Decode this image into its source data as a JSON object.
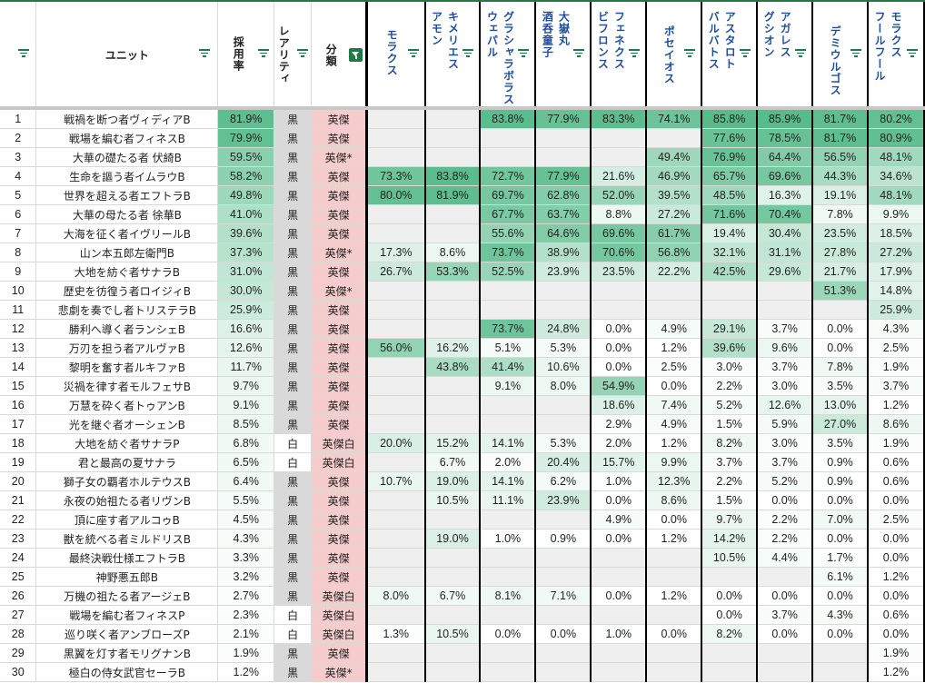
{
  "header": {
    "unit_label": "ユニット",
    "rate_label": "採用率",
    "rarity_label": "レアリティ",
    "class_label": "分類",
    "columns": [
      {
        "line1": "モラクス",
        "line2": ""
      },
      {
        "line1": "キメリエス",
        "line2": "アモン"
      },
      {
        "line1": "グラシャラボラス",
        "line2": "ウェパル"
      },
      {
        "line1": "大嶽丸",
        "line2": "酒呑童子"
      },
      {
        "line1": "フェネクス",
        "line2": "ビフロンス"
      },
      {
        "line1": "ポセイオス",
        "line2": ""
      },
      {
        "line1": "アスタロト",
        "line2": "バルバトス"
      },
      {
        "line1": "アガレス",
        "line2": "グシオン"
      },
      {
        "line1": "デミウルゴス",
        "line2": ""
      },
      {
        "line1": "モラクス",
        "line2": "フールフール"
      }
    ]
  },
  "colors": {
    "accent_green": "#1e7a46",
    "header_blue": "#1f4e9c",
    "rarity_black_bg": "#d9d9d9",
    "class_bg": "#f4cccc",
    "empty_bg": "#efefef",
    "heat_max": "#57bb8a",
    "heat_min": "#ffffff"
  },
  "rows": [
    {
      "n": "1",
      "unit": "戦禍を断つ者ヴィディアB",
      "rate": "81.9%",
      "rarity": "黒",
      "cls": "英傑",
      "v": [
        "",
        "",
        "83.8%",
        "77.9%",
        "83.3%",
        "74.1%",
        "85.8%",
        "85.9%",
        "81.7%",
        "80.2%"
      ]
    },
    {
      "n": "2",
      "unit": "戦場を編む者フィネスB",
      "rate": "79.9%",
      "rarity": "黒",
      "cls": "英傑",
      "v": [
        "",
        "",
        "",
        "",
        "",
        "",
        "77.6%",
        "78.5%",
        "81.7%",
        "80.9%"
      ]
    },
    {
      "n": "3",
      "unit": "大華の礎たる者 伏綺B",
      "rate": "59.5%",
      "rarity": "黒",
      "cls": "英傑*",
      "v": [
        "",
        "",
        "",
        "",
        "",
        "49.4%",
        "76.9%",
        "64.4%",
        "56.5%",
        "48.1%"
      ]
    },
    {
      "n": "4",
      "unit": "生命を謳う者イムラウB",
      "rate": "58.2%",
      "rarity": "黒",
      "cls": "英傑",
      "v": [
        "73.3%",
        "83.8%",
        "72.7%",
        "77.9%",
        "21.6%",
        "46.9%",
        "65.7%",
        "69.6%",
        "44.3%",
        "34.6%"
      ]
    },
    {
      "n": "5",
      "unit": "世界を超える者エフトラB",
      "rate": "49.8%",
      "rarity": "黒",
      "cls": "英傑",
      "v": [
        "80.0%",
        "81.9%",
        "69.7%",
        "62.8%",
        "52.0%",
        "39.5%",
        "48.5%",
        "16.3%",
        "19.1%",
        "48.1%"
      ]
    },
    {
      "n": "6",
      "unit": "大華の母たる者 徐華B",
      "rate": "41.0%",
      "rarity": "黒",
      "cls": "英傑",
      "v": [
        "",
        "",
        "67.7%",
        "63.7%",
        "8.8%",
        "27.2%",
        "71.6%",
        "70.4%",
        "7.8%",
        "9.9%"
      ]
    },
    {
      "n": "7",
      "unit": "大海を征く者イヴリールB",
      "rate": "39.6%",
      "rarity": "黒",
      "cls": "英傑",
      "v": [
        "",
        "",
        "55.6%",
        "64.6%",
        "69.6%",
        "61.7%",
        "19.4%",
        "30.4%",
        "23.5%",
        "18.5%"
      ]
    },
    {
      "n": "8",
      "unit": "山ン本五郎左衛門B",
      "rate": "37.3%",
      "rarity": "黒",
      "cls": "英傑*",
      "v": [
        "17.3%",
        "8.6%",
        "73.7%",
        "38.9%",
        "70.6%",
        "56.8%",
        "32.1%",
        "31.1%",
        "27.8%",
        "27.2%"
      ]
    },
    {
      "n": "9",
      "unit": "大地を紡ぐ者サナラB",
      "rate": "31.0%",
      "rarity": "黒",
      "cls": "英傑",
      "v": [
        "26.7%",
        "53.3%",
        "52.5%",
        "23.9%",
        "23.5%",
        "22.2%",
        "42.5%",
        "29.6%",
        "21.7%",
        "17.9%"
      ]
    },
    {
      "n": "10",
      "unit": "歴史を彷徨う者ロイジィB",
      "rate": "30.0%",
      "rarity": "黒",
      "cls": "英傑*",
      "v": [
        "",
        "",
        "",
        "",
        "",
        "",
        "",
        "",
        "51.3%",
        "14.8%"
      ]
    },
    {
      "n": "11",
      "unit": "悲劇を奏でし者トリステラB",
      "rate": "25.9%",
      "rarity": "黒",
      "cls": "英傑",
      "v": [
        "",
        "",
        "",
        "",
        "",
        "",
        "",
        "",
        "",
        "25.9%"
      ]
    },
    {
      "n": "12",
      "unit": "勝利へ導く者ランシェB",
      "rate": "16.6%",
      "rarity": "黒",
      "cls": "英傑",
      "v": [
        "",
        "",
        "73.7%",
        "24.8%",
        "0.0%",
        "4.9%",
        "29.1%",
        "3.7%",
        "0.0%",
        "4.3%"
      ]
    },
    {
      "n": "13",
      "unit": "万刃を担う者アルヴァB",
      "rate": "12.6%",
      "rarity": "黒",
      "cls": "英傑",
      "v": [
        "56.0%",
        "16.2%",
        "5.1%",
        "5.3%",
        "0.0%",
        "1.2%",
        "39.6%",
        "9.6%",
        "0.0%",
        "2.5%"
      ]
    },
    {
      "n": "14",
      "unit": "黎明を奮す者ルキファB",
      "rate": "11.7%",
      "rarity": "黒",
      "cls": "英傑",
      "v": [
        "",
        "43.8%",
        "41.4%",
        "10.6%",
        "0.0%",
        "2.5%",
        "3.0%",
        "3.7%",
        "7.8%",
        "1.9%"
      ]
    },
    {
      "n": "15",
      "unit": "災禍を律す者モルフェサB",
      "rate": "9.7%",
      "rarity": "黒",
      "cls": "英傑",
      "v": [
        "",
        "",
        "9.1%",
        "8.0%",
        "54.9%",
        "0.0%",
        "2.2%",
        "3.0%",
        "3.5%",
        "3.7%"
      ]
    },
    {
      "n": "16",
      "unit": "万慧を砕く者トゥアンB",
      "rate": "9.1%",
      "rarity": "黒",
      "cls": "英傑",
      "v": [
        "",
        "",
        "",
        "",
        "18.6%",
        "7.4%",
        "5.2%",
        "12.6%",
        "13.0%",
        "1.2%"
      ]
    },
    {
      "n": "17",
      "unit": "光を継ぐ者オーシェンB",
      "rate": "8.5%",
      "rarity": "黒",
      "cls": "英傑",
      "v": [
        "",
        "",
        "",
        "",
        "2.9%",
        "4.9%",
        "1.5%",
        "5.9%",
        "27.0%",
        "8.6%"
      ]
    },
    {
      "n": "18",
      "unit": "大地を紡ぐ者サナラP",
      "rate": "6.8%",
      "rarity": "白",
      "cls": "英傑白",
      "v": [
        "20.0%",
        "15.2%",
        "14.1%",
        "5.3%",
        "2.0%",
        "1.2%",
        "8.2%",
        "3.0%",
        "3.5%",
        "1.9%"
      ]
    },
    {
      "n": "19",
      "unit": "君と最高の夏サナラ",
      "rate": "6.5%",
      "rarity": "白",
      "cls": "英傑白",
      "v": [
        "",
        "6.7%",
        "2.0%",
        "20.4%",
        "15.7%",
        "9.9%",
        "3.7%",
        "3.7%",
        "0.9%",
        "0.6%"
      ]
    },
    {
      "n": "20",
      "unit": "獅子女の覇者ホルテウスB",
      "rate": "6.4%",
      "rarity": "黒",
      "cls": "英傑",
      "v": [
        "10.7%",
        "19.0%",
        "14.1%",
        "6.2%",
        "1.0%",
        "12.3%",
        "2.2%",
        "5.2%",
        "0.9%",
        "0.6%"
      ]
    },
    {
      "n": "21",
      "unit": "永夜の始祖たる者リヴンB",
      "rate": "5.5%",
      "rarity": "黒",
      "cls": "英傑",
      "v": [
        "",
        "10.5%",
        "11.1%",
        "23.9%",
        "0.0%",
        "8.6%",
        "1.5%",
        "0.0%",
        "0.0%",
        "0.0%"
      ]
    },
    {
      "n": "22",
      "unit": "頂に座す者アルコゥB",
      "rate": "4.5%",
      "rarity": "黒",
      "cls": "英傑",
      "v": [
        "",
        "",
        "",
        "",
        "4.9%",
        "0.0%",
        "9.7%",
        "2.2%",
        "7.0%",
        "2.5%"
      ]
    },
    {
      "n": "23",
      "unit": "獣を統べる者ミルドリスB",
      "rate": "4.3%",
      "rarity": "黒",
      "cls": "英傑",
      "v": [
        "",
        "19.0%",
        "1.0%",
        "0.9%",
        "0.0%",
        "1.2%",
        "14.2%",
        "2.2%",
        "0.0%",
        "0.0%"
      ]
    },
    {
      "n": "24",
      "unit": "最終決戦仕様エフトラB",
      "rate": "3.3%",
      "rarity": "黒",
      "cls": "英傑",
      "v": [
        "",
        "",
        "",
        "",
        "",
        "",
        "10.5%",
        "4.4%",
        "1.7%",
        "0.0%"
      ]
    },
    {
      "n": "25",
      "unit": "神野悪五郎B",
      "rate": "3.2%",
      "rarity": "黒",
      "cls": "英傑",
      "v": [
        "",
        "",
        "",
        "",
        "",
        "",
        "",
        "",
        "6.1%",
        "1.2%"
      ]
    },
    {
      "n": "26",
      "unit": "万機の祖たる者アージェB",
      "rate": "2.7%",
      "rarity": "黒",
      "cls": "英傑白",
      "v": [
        "8.0%",
        "6.7%",
        "8.1%",
        "7.1%",
        "0.0%",
        "1.2%",
        "0.0%",
        "0.0%",
        "0.0%",
        "0.0%"
      ]
    },
    {
      "n": "27",
      "unit": "戦場を編む者フィネスP",
      "rate": "2.3%",
      "rarity": "白",
      "cls": "英傑白",
      "v": [
        "",
        "",
        "",
        "",
        "",
        "",
        "0.0%",
        "3.7%",
        "4.3%",
        "0.6%"
      ]
    },
    {
      "n": "28",
      "unit": "巡り咲く者アンブローズP",
      "rate": "2.1%",
      "rarity": "白",
      "cls": "英傑白",
      "v": [
        "1.3%",
        "10.5%",
        "0.0%",
        "0.0%",
        "1.0%",
        "0.0%",
        "8.2%",
        "0.0%",
        "0.0%",
        "0.0%"
      ]
    },
    {
      "n": "29",
      "unit": "黒翼を灯す者モリグナンB",
      "rate": "1.9%",
      "rarity": "黒",
      "cls": "英傑",
      "v": [
        "",
        "",
        "",
        "",
        "",
        "",
        "",
        "",
        "",
        "1.9%"
      ]
    },
    {
      "n": "30",
      "unit": "極白の侍女武官セーラB",
      "rate": "1.2%",
      "rarity": "黒",
      "cls": "英傑*",
      "v": [
        "",
        "",
        "",
        "",
        "",
        "",
        "",
        "",
        "",
        "1.2%"
      ]
    }
  ]
}
